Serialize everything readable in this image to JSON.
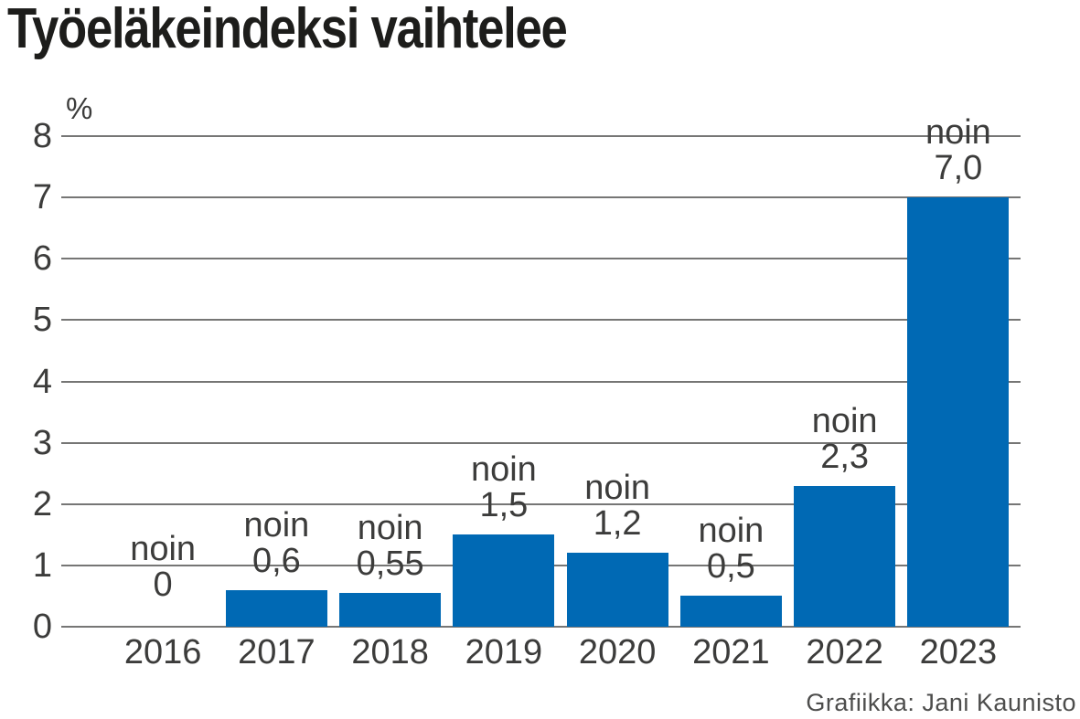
{
  "title": "Työeläkeindeksi vaihtelee",
  "credit": "Grafiikka: Jani Kaunisto",
  "chart_data": {
    "type": "bar",
    "title": "Työeläkeindeksi vaihtelee",
    "xlabel": "",
    "ylabel": "%",
    "categories": [
      "2016",
      "2017",
      "2018",
      "2019",
      "2020",
      "2021",
      "2022",
      "2023"
    ],
    "values": [
      0,
      0.6,
      0.55,
      1.5,
      1.2,
      0.5,
      2.3,
      7.0
    ],
    "value_label_prefix": "noin",
    "value_label_texts": [
      "0",
      "0,6",
      "0,55",
      "1,5",
      "1,2",
      "0,5",
      "2,3",
      "7,0"
    ],
    "ylim": [
      0,
      8
    ],
    "yticks": [
      0,
      1,
      2,
      3,
      4,
      5,
      6,
      7,
      8
    ],
    "grid": true,
    "legend": "none",
    "bar_color": "#0069b4",
    "grid_color": "#767675",
    "text_color": "#3c3c3b",
    "title_color": "#1d1d1b",
    "credit_color": "#4d4d4c"
  }
}
